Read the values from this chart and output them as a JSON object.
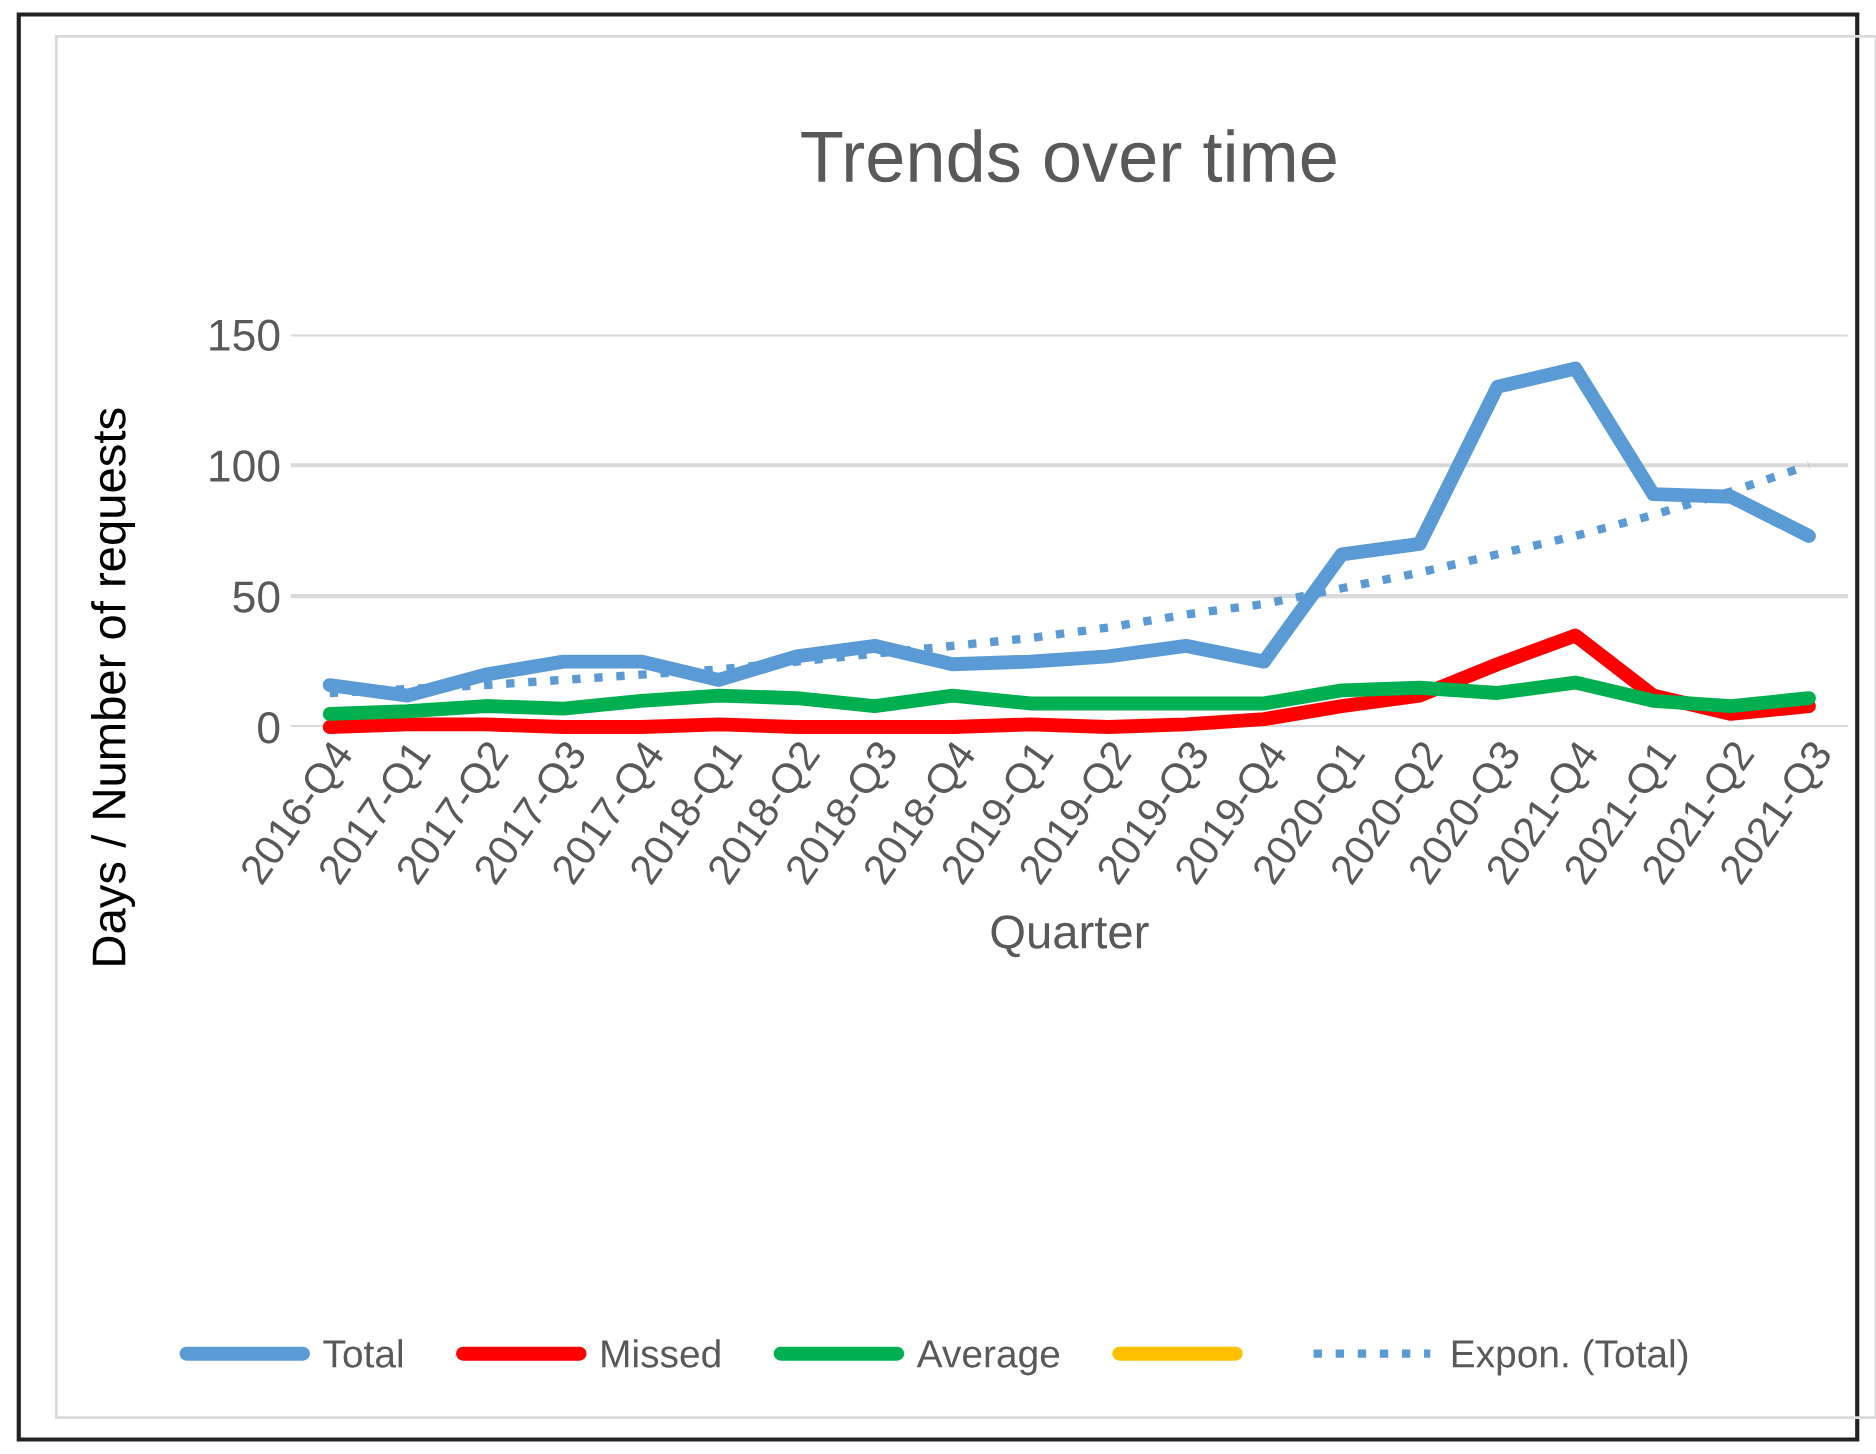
{
  "chart_data": {
    "type": "line",
    "title": "Trends over time",
    "xlabel": "Quarter",
    "ylabel": "Days / Number of requests",
    "categories": [
      "2016-Q4",
      "2017-Q1",
      "2017-Q2",
      "2017-Q3",
      "2017-Q4",
      "2018-Q1",
      "2018-Q2",
      "2018-Q3",
      "2018-Q4",
      "2019-Q1",
      "2019-Q2",
      "2019-Q3",
      "2019-Q4",
      "2020-Q1",
      "2020-Q2",
      "2020-Q3",
      "2021-Q4",
      "2021-Q1",
      "2021-Q2",
      "2021-Q3"
    ],
    "series": [
      {
        "name": "Total",
        "color": "#5b9bd5",
        "line_style": "solid",
        "values": [
          16,
          12,
          20,
          25,
          25,
          18,
          27,
          31,
          24,
          25,
          27,
          31,
          25,
          66,
          70,
          130,
          137,
          89,
          88,
          73
        ]
      },
      {
        "name": "Missed",
        "color": "#ff0000",
        "line_style": "solid",
        "values": [
          0,
          1,
          1,
          0,
          0,
          1,
          0,
          0,
          0,
          1,
          0,
          1,
          3,
          8,
          12,
          24,
          35,
          12,
          5,
          8
        ]
      },
      {
        "name": "Average",
        "color": "#00b050",
        "line_style": "solid",
        "values": [
          5,
          6,
          8,
          7,
          10,
          12,
          11,
          8,
          12,
          9,
          9,
          9,
          9,
          14,
          15,
          13,
          17,
          10,
          8,
          11
        ]
      },
      {
        "color": "#ffc000",
        "line_style": "solid",
        "values": [
          null,
          null,
          null,
          null,
          null,
          null,
          null,
          null,
          null,
          null,
          null,
          null,
          null,
          null,
          null,
          null,
          null,
          null,
          null,
          null
        ]
      },
      {
        "name": "Expon. (Total)",
        "color": "#5b9bd5",
        "line_style": "dotted",
        "values": [
          13,
          14.5,
          16,
          18,
          20,
          22,
          25,
          28,
          31,
          34,
          38,
          43,
          47,
          53,
          59,
          66,
          73,
          81,
          90,
          100
        ]
      }
    ],
    "ylim": [
      0,
      150
    ],
    "yticks": [
      0,
      50,
      100,
      150
    ],
    "grid": "y",
    "legend": "bottom",
    "marker": "none"
  }
}
